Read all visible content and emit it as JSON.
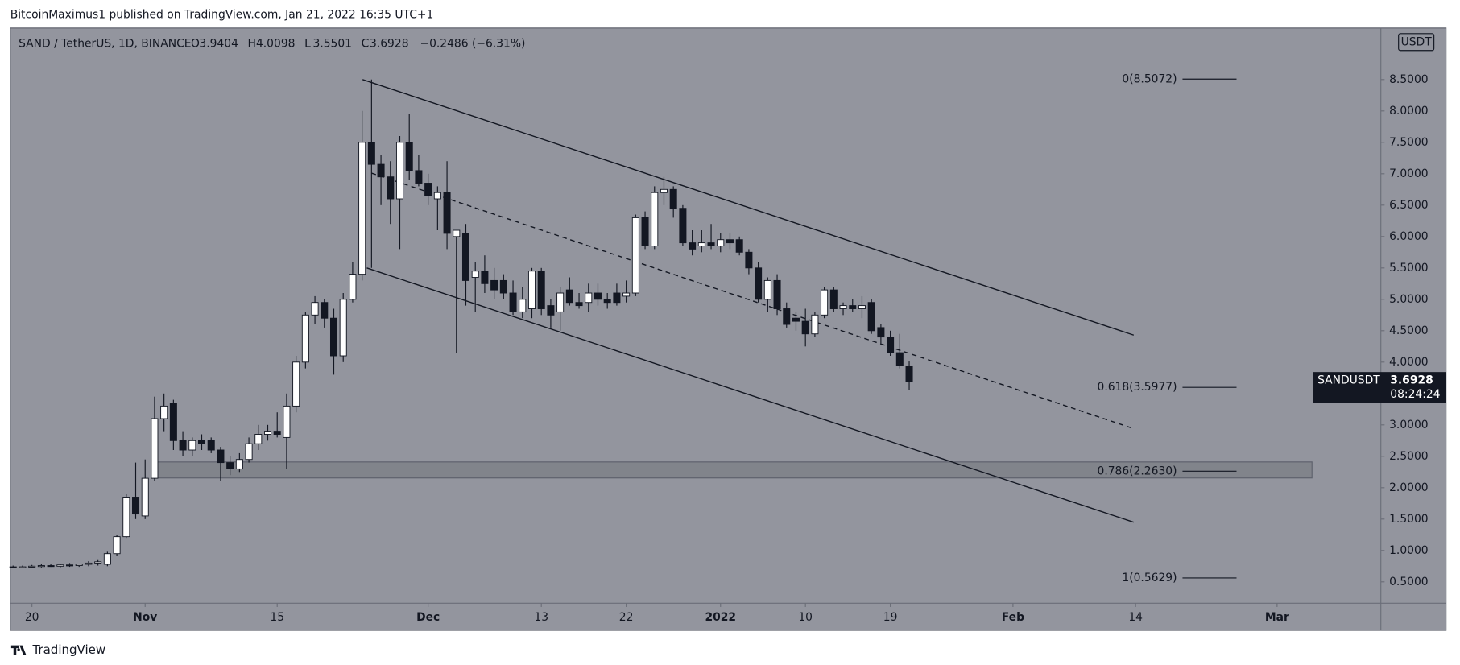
{
  "header": {
    "publisher": "BitcoinMaximus1 published on TradingView.com, Jan 21, 2022 16:35 UTC+1",
    "brand": "TradingView"
  },
  "chart_data": {
    "type": "candlestick",
    "title": "SAND / TetherUS, 1D, BINANCE",
    "ohlc_labels": [
      "O",
      "H",
      "L",
      "C"
    ],
    "change": "−0.2486 (−6.31%)",
    "symbol": "SANDUSDT",
    "countdown": "08:24:24",
    "currency": "USDT",
    "series": {
      "open": [
        0.74,
        0.73,
        0.74,
        0.75,
        0.76,
        0.75,
        0.77,
        0.76,
        0.78,
        0.8,
        0.78,
        0.95,
        1.22,
        1.85,
        1.55,
        2.15,
        3.1,
        3.35,
        2.75,
        2.6,
        2.75,
        2.75,
        2.6,
        2.4,
        2.3,
        2.45,
        2.7,
        2.85,
        2.9,
        2.8,
        3.3,
        4.0,
        4.75,
        4.95,
        4.7,
        4.1,
        5.0,
        5.4,
        7.5,
        7.15,
        6.95,
        6.6,
        7.5,
        7.05,
        6.85,
        6.6,
        6.7,
        6.0,
        6.05,
        5.35,
        5.45,
        5.3,
        5.3,
        5.1,
        4.8,
        4.85,
        5.45,
        4.9,
        4.8,
        5.15,
        4.95,
        4.95,
        5.1,
        5.0,
        5.1,
        5.05,
        5.1,
        6.3,
        5.85,
        6.7,
        6.75,
        6.45,
        5.9,
        5.85,
        5.9,
        5.85,
        5.95,
        5.95,
        5.75,
        5.5,
        5.0,
        5.3,
        4.85,
        4.7,
        4.65,
        4.45,
        4.75,
        5.15,
        4.85,
        4.9,
        4.85,
        4.95,
        4.55,
        4.4,
        4.15,
        3.9404
      ],
      "high": [
        0.76,
        0.76,
        0.77,
        0.78,
        0.78,
        0.78,
        0.8,
        0.79,
        0.83,
        0.86,
        0.98,
        1.25,
        1.9,
        2.4,
        2.45,
        3.45,
        3.5,
        3.4,
        2.9,
        2.8,
        2.85,
        2.8,
        2.65,
        2.5,
        2.55,
        2.8,
        3.0,
        3.0,
        3.2,
        3.5,
        4.1,
        4.8,
        5.05,
        5.0,
        4.85,
        5.1,
        5.6,
        8.0,
        8.5,
        7.3,
        7.2,
        7.6,
        7.95,
        7.3,
        7.0,
        6.8,
        7.2,
        6.1,
        6.2,
        5.6,
        5.7,
        5.5,
        5.4,
        5.3,
        5.2,
        5.5,
        5.5,
        5.0,
        5.2,
        5.35,
        5.1,
        5.25,
        5.25,
        5.1,
        5.25,
        5.3,
        6.35,
        6.4,
        6.8,
        6.95,
        6.8,
        6.5,
        6.1,
        6.1,
        6.2,
        6.05,
        6.05,
        6.0,
        5.8,
        5.6,
        5.35,
        5.4,
        4.95,
        4.8,
        4.85,
        4.8,
        5.2,
        5.2,
        4.95,
        5.0,
        5.05,
        5.0,
        4.6,
        4.5,
        4.45,
        4.0098
      ],
      "low": [
        0.72,
        0.72,
        0.73,
        0.73,
        0.74,
        0.73,
        0.74,
        0.74,
        0.75,
        0.76,
        0.75,
        0.92,
        1.2,
        1.5,
        1.5,
        2.1,
        2.9,
        2.6,
        2.5,
        2.5,
        2.6,
        2.55,
        2.1,
        2.2,
        2.25,
        2.4,
        2.6,
        2.75,
        2.8,
        2.3,
        3.2,
        3.9,
        4.6,
        4.55,
        3.8,
        4.0,
        4.95,
        5.3,
        5.5,
        6.5,
        6.2,
        5.8,
        6.9,
        6.8,
        6.5,
        6.1,
        5.8,
        4.15,
        4.9,
        4.8,
        5.1,
        5.0,
        5.0,
        4.75,
        4.7,
        4.7,
        4.75,
        4.55,
        4.5,
        4.9,
        4.85,
        4.8,
        4.9,
        4.85,
        4.9,
        4.95,
        5.05,
        5.8,
        5.8,
        6.5,
        6.3,
        5.85,
        5.7,
        5.75,
        5.8,
        5.75,
        5.8,
        5.7,
        5.4,
        4.95,
        4.8,
        4.75,
        4.55,
        4.5,
        4.25,
        4.4,
        4.7,
        4.8,
        4.75,
        4.8,
        4.7,
        4.45,
        4.3,
        4.1,
        3.9,
        3.5501
      ],
      "close": [
        0.73,
        0.74,
        0.75,
        0.76,
        0.75,
        0.77,
        0.76,
        0.78,
        0.8,
        0.82,
        0.95,
        1.22,
        1.85,
        1.58,
        2.15,
        3.1,
        3.3,
        2.75,
        2.6,
        2.75,
        2.7,
        2.6,
        2.4,
        2.3,
        2.45,
        2.7,
        2.85,
        2.9,
        2.85,
        3.3,
        4.0,
        4.75,
        4.95,
        4.7,
        4.1,
        5.0,
        5.4,
        7.5,
        7.15,
        6.95,
        6.6,
        7.5,
        7.05,
        6.85,
        6.65,
        6.7,
        6.05,
        6.1,
        5.3,
        5.45,
        5.25,
        5.15,
        5.1,
        4.8,
        5.0,
        5.45,
        4.85,
        4.75,
        5.1,
        4.95,
        4.9,
        5.1,
        5.0,
        4.95,
        4.95,
        5.1,
        6.3,
        5.85,
        6.7,
        6.75,
        6.45,
        5.9,
        5.8,
        5.9,
        5.85,
        5.95,
        5.9,
        5.75,
        5.5,
        5.0,
        5.3,
        4.85,
        4.6,
        4.65,
        4.45,
        4.75,
        5.15,
        4.85,
        4.9,
        4.85,
        4.9,
        4.5,
        4.4,
        4.15,
        3.95,
        3.6928
      ]
    },
    "xlim": [
      -0.3,
      145
    ],
    "xticks": [
      {
        "value": 2,
        "label": "20"
      },
      {
        "value": 14,
        "label": "Nov"
      },
      {
        "value": 28,
        "label": "15"
      },
      {
        "value": 44,
        "label": "Dec"
      },
      {
        "value": 56,
        "label": "13"
      },
      {
        "value": 65,
        "label": "22"
      },
      {
        "value": 75,
        "label": "2022"
      },
      {
        "value": 84,
        "label": "10"
      },
      {
        "value": 93,
        "label": "19"
      },
      {
        "value": 106,
        "label": "Feb"
      },
      {
        "value": 119,
        "label": "14"
      },
      {
        "value": 134,
        "label": "Mar"
      }
    ],
    "ylim": [
      0.16,
      9.32
    ],
    "yticks": [
      {
        "value": 0.5,
        "label": "0.5000"
      },
      {
        "value": 1,
        "label": "1.0000"
      },
      {
        "value": 1.5,
        "label": "1.5000"
      },
      {
        "value": 2,
        "label": "2.0000"
      },
      {
        "value": 2.5,
        "label": "2.5000"
      },
      {
        "value": 3,
        "label": "3.0000"
      },
      {
        "value": 3.5,
        "label": "3.5000"
      },
      {
        "value": 4,
        "label": "4.0000"
      },
      {
        "value": 4.5,
        "label": "4.5000"
      },
      {
        "value": 5,
        "label": "5.0000"
      },
      {
        "value": 5.5,
        "label": "5.5000"
      },
      {
        "value": 6,
        "label": "6.0000"
      },
      {
        "value": 6.5,
        "label": "6.5000"
      },
      {
        "value": 7,
        "label": "7.0000"
      },
      {
        "value": 7.5,
        "label": "7.5000"
      },
      {
        "value": 8,
        "label": "8.0000"
      },
      {
        "value": 8.5,
        "label": "8.5000"
      }
    ],
    "fib_levels": [
      {
        "value": 8.5072,
        "label": "0(8.5072)"
      },
      {
        "value": 3.5977,
        "label": "0.618(3.5977)"
      },
      {
        "value": 2.263,
        "label": "0.786(2.2630)"
      },
      {
        "value": 0.5629,
        "label": "1(0.5629)"
      }
    ],
    "trend_lines": [
      {
        "style": "solid",
        "points": [
          [
            37.05,
            8.5
          ],
          [
            118.8,
            4.43
          ]
        ]
      },
      {
        "style": "solid",
        "points": [
          [
            37.5,
            5.5
          ],
          [
            118.8,
            1.45
          ]
        ]
      },
      {
        "style": "dashed",
        "points": [
          [
            38,
            7.01
          ],
          [
            118.8,
            2.94
          ]
        ]
      }
    ],
    "zone": {
      "x": [
        15.3,
        137.7
      ],
      "y": [
        2.155,
        2.41
      ]
    },
    "up_color": "#ffffff",
    "down_color": "#131722",
    "background": "#93959e"
  }
}
